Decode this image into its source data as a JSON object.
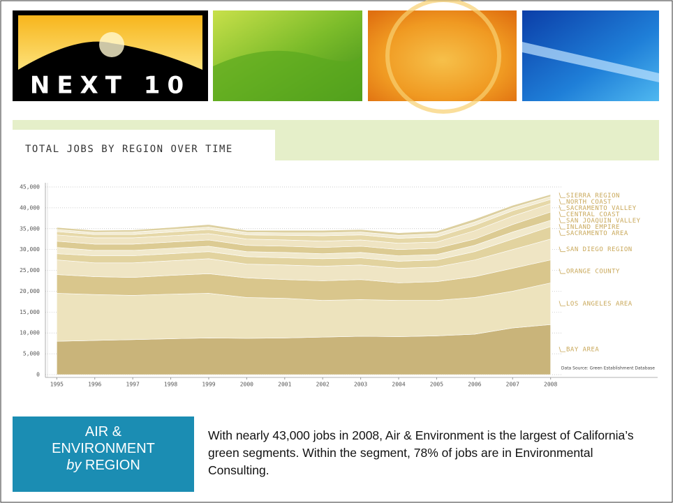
{
  "header": {
    "logo": "NEXT 10"
  },
  "slide": {
    "title_lines": [
      "AIR &",
      "ENVIRONMENT",
      "by",
      "REGION"
    ],
    "body": "With nearly 43,000 jobs in 2008, Air & Environment is the largest of California’s green segments.  Within the segment, 78% of jobs are in Environmental Consulting."
  },
  "chart_data": {
    "type": "stacked_area",
    "title": "TOTAL JOBS BY REGION OVER TIME",
    "source": "Data Source: Green Establishment Database",
    "x": [
      1995,
      1996,
      1997,
      1998,
      1999,
      2000,
      2001,
      2002,
      2003,
      2004,
      2005,
      2006,
      2007,
      2008
    ],
    "xlim": [
      1994.7,
      2008.3
    ],
    "xticks": [
      1995,
      1996,
      1997,
      1998,
      1999,
      2000,
      2001,
      2002,
      2003,
      2004,
      2005,
      2006,
      2007,
      2008
    ],
    "ylim": [
      0,
      45000
    ],
    "yticks": [
      0,
      {
        "value": 5000,
        "label": "5,000"
      },
      {
        "value": 10000,
        "label": "10,000"
      },
      {
        "value": 15000,
        "label": "15,000"
      },
      {
        "value": 20000,
        "label": "20,000"
      },
      {
        "value": 25000,
        "label": "25,000"
      },
      {
        "value": 30000,
        "label": "30,000"
      },
      {
        "value": 35000,
        "label": "35,000"
      },
      {
        "value": 40000,
        "label": "40,000"
      },
      {
        "value": 45000,
        "label": "45,000"
      }
    ],
    "grid": true,
    "series": [
      {
        "name": "BAY AREA",
        "color": "#c9b47a",
        "values": [
          8000,
          8200,
          8400,
          8600,
          8800,
          8700,
          8800,
          9000,
          9200,
          9100,
          9300,
          9700,
          11200,
          12000
        ]
      },
      {
        "name": "LOS ANGELES AREA",
        "color": "#ede3bd",
        "values": [
          11500,
          11000,
          10600,
          10700,
          10700,
          9800,
          9500,
          8800,
          8800,
          8700,
          8500,
          8800,
          8800,
          10000
        ]
      },
      {
        "name": "ORANGE COUNTY",
        "color": "#d9c68c",
        "values": [
          4500,
          4300,
          4300,
          4500,
          4700,
          4700,
          4500,
          4700,
          4800,
          4200,
          4500,
          5000,
          5500,
          5500
        ]
      },
      {
        "name": "SAN DIEGO REGION",
        "color": "#efe5c4",
        "values": [
          3500,
          3300,
          3500,
          3500,
          3600,
          3300,
          3500,
          3500,
          3500,
          3500,
          3500,
          4000,
          4500,
          5000
        ]
      },
      {
        "name": "SACRAMENTO AREA",
        "color": "#e2d39f",
        "values": [
          1500,
          1700,
          1700,
          1700,
          1700,
          1800,
          1700,
          1800,
          1700,
          1700,
          1700,
          2000,
          2500,
          3000
        ]
      },
      {
        "name": "INLAND EMPIRE",
        "color": "#f1e9cc",
        "values": [
          1500,
          1300,
          1300,
          1300,
          1300,
          1200,
          1300,
          1200,
          1300,
          1300,
          1300,
          1500,
          1700,
          1500
        ]
      },
      {
        "name": "SAN JOAQUIN VALLEY",
        "color": "#dccb93",
        "values": [
          1500,
          1500,
          1500,
          1500,
          1500,
          1500,
          1500,
          1500,
          1500,
          1500,
          1500,
          1500,
          1800,
          2000
        ]
      },
      {
        "name": "CENTRAL COAST",
        "color": "#efe4c2",
        "values": [
          1500,
          1500,
          1500,
          1500,
          1500,
          1500,
          1500,
          1500,
          1500,
          1500,
          1500,
          2000,
          2000,
          2000
        ]
      },
      {
        "name": "SACRAMENTO VALLEY",
        "color": "#e6d8a8",
        "values": [
          800,
          800,
          800,
          900,
          1000,
          1000,
          1100,
          1300,
          1200,
          1200,
          1200,
          1300,
          1300,
          1000
        ]
      },
      {
        "name": "NORTH COAST",
        "color": "#f3ecd3",
        "values": [
          500,
          500,
          600,
          600,
          600,
          600,
          600,
          700,
          700,
          700,
          800,
          800,
          700,
          700
        ]
      },
      {
        "name": "SIERRA REGION",
        "color": "#ddd0a0",
        "values": [
          500,
          500,
          500,
          500,
          600,
          500,
          600,
          600,
          600,
          600,
          600,
          700,
          600,
          500
        ]
      }
    ]
  }
}
